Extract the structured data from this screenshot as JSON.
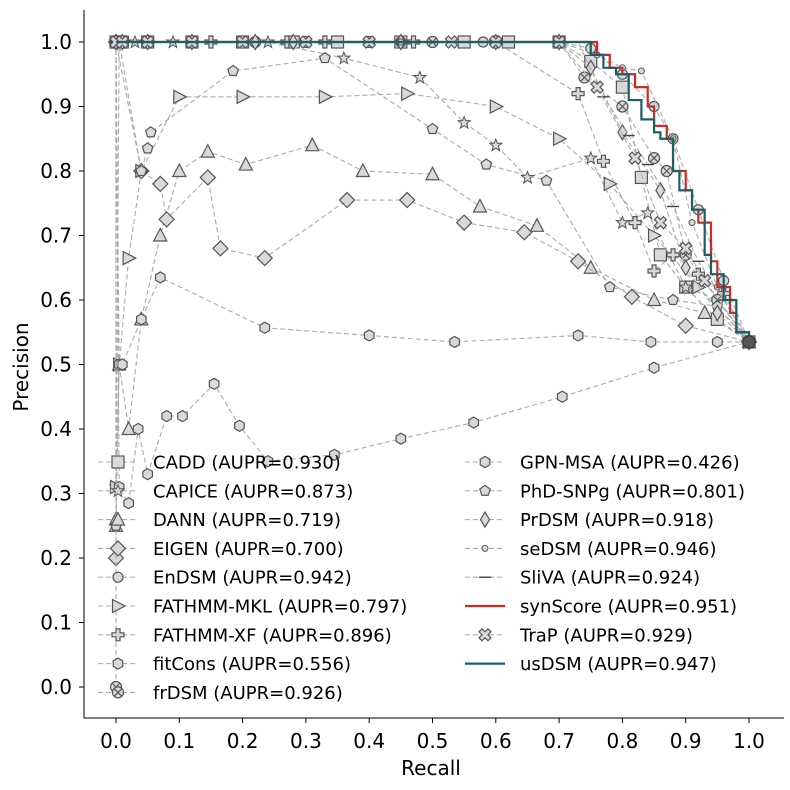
{
  "chart_data": {
    "type": "line",
    "title": "",
    "xlabel": "Recall",
    "ylabel": "Precision",
    "xlim": [
      -0.05,
      1.05
    ],
    "ylim": [
      -0.05,
      1.05
    ],
    "x_ticks": [
      "0.0",
      "0.1",
      "0.2",
      "0.3",
      "0.4",
      "0.5",
      "0.6",
      "0.7",
      "0.8",
      "0.9",
      "1.0"
    ],
    "y_ticks": [
      "0.0",
      "0.1",
      "0.2",
      "0.3",
      "0.4",
      "0.5",
      "0.6",
      "0.7",
      "0.8",
      "0.9",
      "1.0"
    ],
    "grid": false,
    "legend_placement": "lower-center, two columns",
    "series": [
      {
        "name": "CADD (AUPR=0.930)",
        "marker": "square",
        "color": "#aaaaaa",
        "x": [
          0.0,
          0.01,
          0.05,
          0.12,
          0.2,
          0.28,
          0.35,
          0.45,
          0.55,
          0.62,
          0.7,
          0.75,
          0.8,
          0.83,
          0.86,
          0.9,
          0.95,
          1.0
        ],
        "y": [
          1.0,
          1.0,
          1.0,
          1.0,
          1.0,
          1.0,
          1.0,
          1.0,
          1.0,
          1.0,
          1.0,
          0.97,
          0.93,
          0.79,
          0.67,
          0.62,
          0.57,
          0.535
        ]
      },
      {
        "name": "CAPICE (AUPR=0.873)",
        "marker": "star",
        "color": "#aaaaaa",
        "x": [
          0.0,
          0.0,
          0.03,
          0.09,
          0.24,
          0.36,
          0.48,
          0.55,
          0.6,
          0.65,
          0.75,
          0.8,
          0.84,
          0.9,
          0.95,
          1.0
        ],
        "y": [
          0.31,
          1.0,
          1.0,
          1.0,
          1.0,
          0.975,
          0.945,
          0.875,
          0.84,
          0.79,
          0.82,
          0.72,
          0.735,
          0.62,
          0.6,
          0.535
        ]
      },
      {
        "name": "DANN (AUPR=0.719)",
        "marker": "triangle",
        "color": "#aaaaaa",
        "x": [
          0.0,
          0.0,
          0.005,
          0.02,
          0.04,
          0.07,
          0.1,
          0.145,
          0.205,
          0.31,
          0.39,
          0.5,
          0.575,
          0.665,
          0.75,
          0.85,
          0.93,
          1.0
        ],
        "y": [
          0.26,
          0.25,
          0.5,
          0.4,
          0.57,
          0.7,
          0.8,
          0.83,
          0.81,
          0.84,
          0.8,
          0.795,
          0.745,
          0.715,
          0.65,
          0.6,
          0.58,
          0.535
        ]
      },
      {
        "name": "EIGEN (AUPR=0.700)",
        "marker": "diamond",
        "color": "#aaaaaa",
        "x": [
          0.0,
          0.0,
          0.04,
          0.07,
          0.08,
          0.145,
          0.165,
          0.235,
          0.365,
          0.46,
          0.55,
          0.645,
          0.73,
          0.815,
          0.9,
          1.0
        ],
        "y": [
          0.2,
          1.0,
          0.8,
          0.78,
          0.725,
          0.79,
          0.68,
          0.665,
          0.755,
          0.755,
          0.72,
          0.705,
          0.66,
          0.605,
          0.56,
          0.535
        ]
      },
      {
        "name": "EnDSM (AUPR=0.942)",
        "marker": "circle",
        "color": "#aaaaaa",
        "x": [
          0.0,
          0.01,
          0.05,
          0.12,
          0.22,
          0.3,
          0.45,
          0.58,
          0.7,
          0.75,
          0.8,
          0.85,
          0.88,
          0.92,
          0.96,
          1.0
        ],
        "y": [
          1.0,
          1.0,
          1.0,
          1.0,
          1.0,
          1.0,
          1.0,
          1.0,
          1.0,
          0.99,
          0.95,
          0.9,
          0.85,
          0.74,
          0.63,
          0.535
        ]
      },
      {
        "name": "FATHMM-MKL (AUPR=0.797)",
        "marker": "triangle-right",
        "color": "#aaaaaa",
        "x": [
          0.0,
          0.005,
          0.02,
          0.04,
          0.1,
          0.2,
          0.33,
          0.46,
          0.6,
          0.7,
          0.78,
          0.85,
          0.92,
          1.0
        ],
        "y": [
          0.31,
          0.5,
          0.665,
          0.8,
          0.915,
          0.915,
          0.915,
          0.92,
          0.9,
          0.85,
          0.78,
          0.7,
          0.62,
          0.535
        ]
      },
      {
        "name": "FATHMM-XF (AUPR=0.896)",
        "marker": "plus",
        "color": "#aaaaaa",
        "x": [
          0.0,
          0.01,
          0.05,
          0.15,
          0.27,
          0.33,
          0.47,
          0.6,
          0.73,
          0.77,
          0.82,
          0.85,
          0.88,
          0.92,
          0.96,
          1.0
        ],
        "y": [
          1.0,
          1.0,
          1.0,
          1.0,
          1.0,
          1.0,
          1.0,
          1.0,
          0.92,
          0.815,
          0.72,
          0.645,
          0.67,
          0.64,
          0.61,
          0.535
        ]
      },
      {
        "name": "fitCons (AUPR=0.556)",
        "marker": "hexagon",
        "color": "#aaaaaa",
        "x": [
          0.0,
          0.005,
          0.01,
          0.04,
          0.07,
          0.235,
          0.4,
          0.535,
          0.73,
          0.845,
          0.95,
          1.0
        ],
        "y": [
          1.0,
          0.5,
          0.5,
          0.57,
          0.635,
          0.557,
          0.545,
          0.535,
          0.545,
          0.535,
          0.535,
          0.535
        ]
      },
      {
        "name": "frDSM (AUPR=0.926)",
        "marker": "x-circle",
        "color": "#aaaaaa",
        "x": [
          0.0,
          0.0,
          0.01,
          0.05,
          0.12,
          0.22,
          0.3,
          0.4,
          0.5,
          0.6,
          0.7,
          0.74,
          0.8,
          0.85,
          0.87,
          0.9,
          0.95,
          1.0
        ],
        "y": [
          0.0,
          1.0,
          1.0,
          1.0,
          1.0,
          1.0,
          1.0,
          1.0,
          1.0,
          1.0,
          1.0,
          0.945,
          0.9,
          0.82,
          0.8,
          0.67,
          0.6,
          0.535
        ]
      },
      {
        "name": "GPN-MSA (AUPR=0.426)",
        "marker": "hexagon",
        "color": "#aaaaaa",
        "x": [
          0.0,
          0.005,
          0.02,
          0.035,
          0.05,
          0.08,
          0.105,
          0.155,
          0.195,
          0.24,
          0.345,
          0.45,
          0.565,
          0.705,
          0.85,
          1.0
        ],
        "y": [
          1.0,
          0.31,
          0.285,
          0.4,
          0.33,
          0.42,
          0.42,
          0.47,
          0.405,
          0.35,
          0.36,
          0.385,
          0.41,
          0.45,
          0.495,
          0.535
        ]
      },
      {
        "name": "PhD-SNPg (AUPR=0.801)",
        "marker": "pentagon",
        "color": "#aaaaaa",
        "x": [
          0.0,
          0.005,
          0.04,
          0.05,
          0.055,
          0.185,
          0.33,
          0.5,
          0.585,
          0.68,
          0.78,
          0.88,
          0.95,
          1.0
        ],
        "y": [
          0.25,
          1.0,
          0.8,
          0.835,
          0.86,
          0.955,
          0.975,
          0.865,
          0.81,
          0.785,
          0.62,
          0.6,
          0.59,
          0.535
        ]
      },
      {
        "name": "PrDSM (AUPR=0.918)",
        "marker": "thin-diamond",
        "color": "#aaaaaa",
        "x": [
          0.0,
          0.01,
          0.05,
          0.12,
          0.22,
          0.28,
          0.45,
          0.6,
          0.7,
          0.75,
          0.8,
          0.86,
          0.9,
          0.95,
          1.0
        ],
        "y": [
          1.0,
          1.0,
          1.0,
          1.0,
          1.0,
          1.0,
          1.0,
          1.0,
          1.0,
          0.96,
          0.86,
          0.77,
          0.65,
          0.58,
          0.535
        ]
      },
      {
        "name": "seDSM (AUPR=0.946)",
        "marker": "small-circle",
        "color": "#aaaaaa",
        "x": [
          0.0,
          0.01,
          0.05,
          0.12,
          0.2,
          0.3,
          0.45,
          0.6,
          0.7,
          0.76,
          0.8,
          0.83,
          0.88,
          0.91,
          0.95,
          1.0
        ],
        "y": [
          1.0,
          1.0,
          1.0,
          1.0,
          1.0,
          1.0,
          1.0,
          1.0,
          1.0,
          0.98,
          0.96,
          0.955,
          0.85,
          0.72,
          0.62,
          0.535
        ]
      },
      {
        "name": "SliVA (AUPR=0.924)",
        "marker": "hline",
        "color": "#aaaaaa",
        "x": [
          0.0,
          0.01,
          0.05,
          0.12,
          0.22,
          0.3,
          0.45,
          0.6,
          0.7,
          0.73,
          0.77,
          0.81,
          0.84,
          0.88,
          0.92,
          0.96,
          1.0
        ],
        "y": [
          1.0,
          1.0,
          1.0,
          1.0,
          1.0,
          1.0,
          1.0,
          1.0,
          1.0,
          1.0,
          0.915,
          0.855,
          0.81,
          0.745,
          0.66,
          0.6,
          0.535
        ]
      },
      {
        "name": "synScore (AUPR=0.951)",
        "marker": "none",
        "color": "#c0302c",
        "x": [
          0.0,
          0.72,
          0.76,
          0.78,
          0.8,
          0.82,
          0.84,
          0.85,
          0.87,
          0.88,
          0.9,
          0.91,
          0.92,
          0.94,
          0.95,
          0.97,
          0.98,
          1.0
        ],
        "y": [
          1.0,
          1.0,
          0.98,
          0.96,
          0.95,
          0.93,
          0.9,
          0.87,
          0.85,
          0.8,
          0.77,
          0.74,
          0.72,
          0.66,
          0.62,
          0.58,
          0.55,
          0.535
        ]
      },
      {
        "name": "TraP (AUPR=0.929)",
        "marker": "x-filled",
        "color": "#aaaaaa",
        "x": [
          0.0,
          0.01,
          0.05,
          0.12,
          0.2,
          0.3,
          0.4,
          0.53,
          0.6,
          0.7,
          0.76,
          0.82,
          0.86,
          0.9,
          0.93,
          1.0
        ],
        "y": [
          1.0,
          1.0,
          1.0,
          1.0,
          1.0,
          1.0,
          1.0,
          1.0,
          1.0,
          1.0,
          0.93,
          0.82,
          0.72,
          0.68,
          0.63,
          0.535
        ]
      },
      {
        "name": "usDSM (AUPR=0.947)",
        "marker": "none",
        "color": "#1e5e66",
        "x": [
          0.0,
          0.72,
          0.75,
          0.77,
          0.79,
          0.81,
          0.83,
          0.85,
          0.86,
          0.88,
          0.89,
          0.91,
          0.93,
          0.94,
          0.96,
          0.98,
          1.0
        ],
        "y": [
          1.0,
          1.0,
          0.98,
          0.96,
          0.95,
          0.91,
          0.88,
          0.86,
          0.85,
          0.8,
          0.77,
          0.74,
          0.67,
          0.64,
          0.6,
          0.55,
          0.535
        ]
      }
    ]
  }
}
